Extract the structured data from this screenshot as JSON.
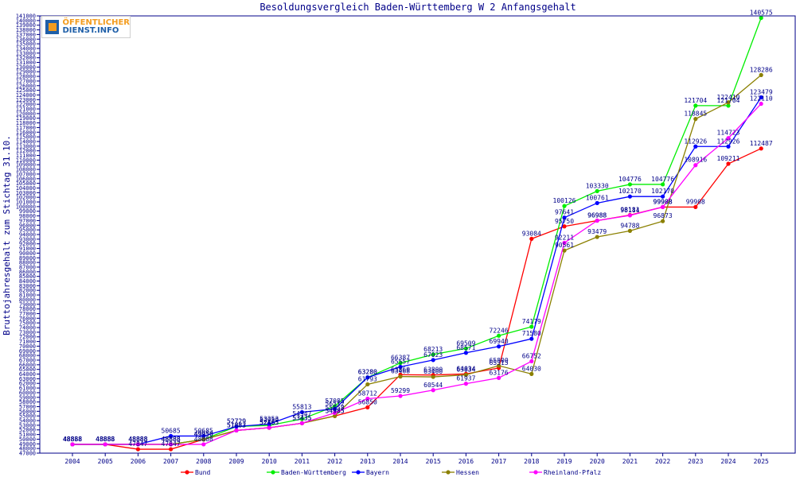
{
  "logo": {
    "line1": "ÖFFENTLICHER",
    "line2": "DIENST.INFO"
  },
  "chart_data": {
    "type": "line",
    "title": "Besoldungsvergleich Baden-Württemberg W 2 Anfangsgehalt",
    "xlabel": "",
    "ylabel": "Bruttojahresgehalt zum Stichtag 31.10.",
    "ylim": [
      47000,
      141000
    ],
    "ystep": 1000,
    "grid": false,
    "legend_position": "bottom",
    "categories": [
      "2004",
      "2005",
      "2006",
      "2007",
      "2008",
      "2009",
      "2010",
      "2011",
      "2012",
      "2013",
      "2014",
      "2015",
      "2016",
      "2017",
      "2018",
      "2019",
      "2020",
      "2021",
      "2022",
      "2023",
      "2024",
      "2025"
    ],
    "series": [
      {
        "name": "Bund",
        "color": "#ff0000",
        "values": [
          48888,
          48888,
          47847,
          47847,
          49950,
          51883,
          52465,
          53435,
          54985,
          56850,
          63860,
          63800,
          64034,
          65315,
          93084,
          95750,
          96988,
          98181,
          99908,
          99908,
          109211,
          112487
        ]
      },
      {
        "name": "Baden-Württemberg",
        "color": "#00ee00",
        "values": [
          48888,
          48888,
          48888,
          48888,
          49950,
          52729,
          52959,
          54347,
          57085,
          63280,
          66387,
          68213,
          69509,
          72246,
          74179,
          100126,
          103330,
          104776,
          104776,
          121704,
          121704,
          140575
        ]
      },
      {
        "name": "Bayern",
        "color": "#0000ff",
        "values": [
          48888,
          48888,
          48888,
          50685,
          50685,
          52729,
          53253,
          55813,
          56512,
          63280,
          65557,
          67023,
          68571,
          69940,
          71580,
          97641,
          100761,
          102170,
          102170,
          112926,
          112926,
          123479
        ]
      },
      {
        "name": "Hessen",
        "color": "#8b8000",
        "values": [
          48888,
          48888,
          48888,
          48888,
          49950,
          51883,
          52465,
          53435,
          54985,
          61793,
          63468,
          63400,
          63834,
          65800,
          64030,
          90561,
          93479,
          94788,
          96873,
          118845,
          122410,
          128286
        ]
      },
      {
        "name": "Rheinland-Pfalz",
        "color": "#ff00ff",
        "values": [
          48888,
          48888,
          48888,
          48888,
          48888,
          51883,
          52465,
          53435,
          55658,
          58712,
          59299,
          60544,
          61937,
          63176,
          66752,
          92211,
          96988,
          98114,
          99908,
          108916,
          114723,
          122110
        ]
      }
    ]
  }
}
